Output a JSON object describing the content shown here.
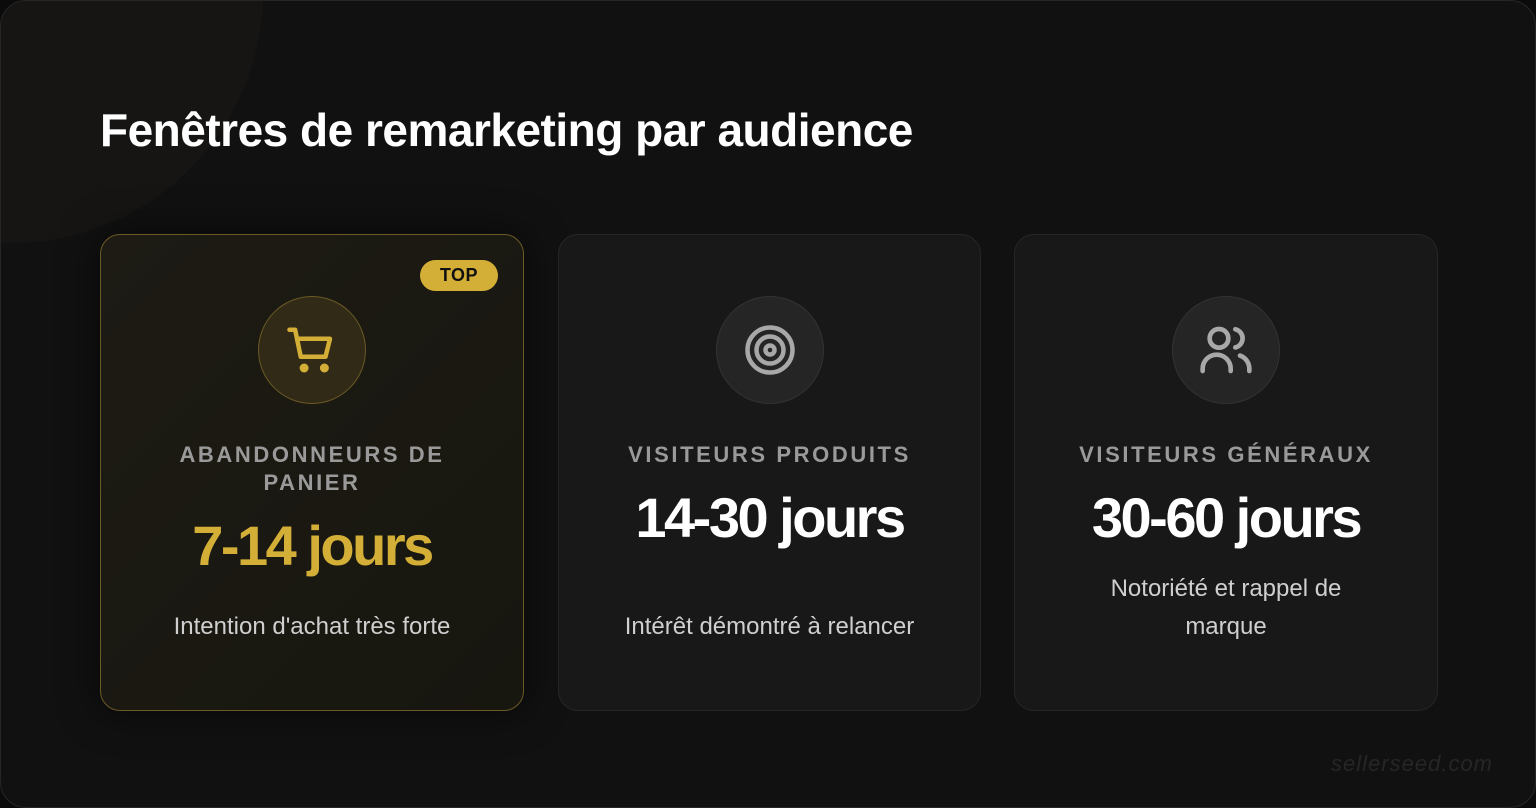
{
  "title": "Fenêtres de remarketing par audience",
  "cards": [
    {
      "badge": "TOP",
      "icon": "shopping-cart-icon",
      "label": "ABANDONNEURS DE PANIER",
      "value": "7-14 jours",
      "desc": "Intention d'achat très forte",
      "accent": "#d4af37"
    },
    {
      "icon": "target-icon",
      "label": "VISITEURS PRODUITS",
      "value": "14-30 jours",
      "desc": "Intérêt démontré à relancer"
    },
    {
      "icon": "users-icon",
      "label": "VISITEURS GÉNÉRAUX",
      "value": "30-60 jours",
      "desc": "Notoriété et rappel de marque"
    }
  ],
  "watermark": "sellerseed.com"
}
